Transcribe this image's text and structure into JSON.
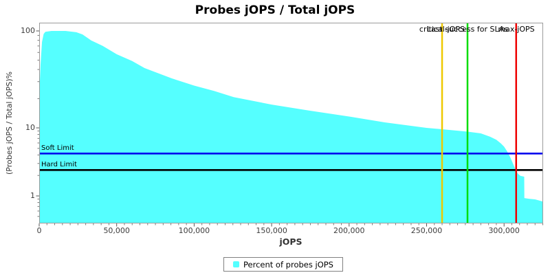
{
  "title": "Probes jOPS / Total jOPS",
  "x_axis": {
    "label": "jOPS",
    "max": 325200,
    "minor_tick_step": 5000,
    "ticks": [
      {
        "value": 0,
        "label": "0"
      },
      {
        "value": 50000,
        "label": "50,000"
      },
      {
        "value": 100000,
        "label": "100,000"
      },
      {
        "value": 150000,
        "label": "150,000"
      },
      {
        "value": 200000,
        "label": "200,000"
      },
      {
        "value": 250000,
        "label": "250,000"
      },
      {
        "value": 300000,
        "label": "300,000"
      }
    ]
  },
  "y_axis": {
    "label": "(Probes jOPS / Total jOPS)%",
    "scale": "log",
    "ticks": [
      {
        "value": 1,
        "label": "1"
      },
      {
        "value": 10,
        "label": "10"
      },
      {
        "value": 100,
        "label": "100"
      }
    ]
  },
  "legend": {
    "label": "Percent of probes jOPS",
    "swatch_color": "#55ffff"
  },
  "chart_data": {
    "type": "area",
    "title": "Probes jOPS / Total jOPS",
    "xlabel": "jOPS",
    "ylabel": "(Probes jOPS / Total jOPS)%",
    "x_range": [
      0,
      325200
    ],
    "y_scale": "log",
    "y_range_pct": [
      0.4,
      120
    ],
    "grid": false,
    "legend_position": "bottom",
    "series": [
      {
        "name": "Percent of probes jOPS",
        "color": "#55ffff",
        "points": [
          [
            0,
            0.39
          ],
          [
            400,
            29
          ],
          [
            900,
            45
          ],
          [
            1800,
            77
          ],
          [
            2900,
            93
          ],
          [
            4000,
            98
          ],
          [
            8000,
            100
          ],
          [
            17000,
            100
          ],
          [
            24000,
            97
          ],
          [
            28000,
            92
          ],
          [
            33500,
            80
          ],
          [
            41000,
            70
          ],
          [
            50000,
            57.5
          ],
          [
            60000,
            49
          ],
          [
            68000,
            41.4
          ],
          [
            85600,
            32.4
          ],
          [
            100000,
            27.3
          ],
          [
            113000,
            24
          ],
          [
            125500,
            20.8
          ],
          [
            150000,
            17.4
          ],
          [
            174000,
            15.1
          ],
          [
            200000,
            13.1
          ],
          [
            223000,
            11.4
          ],
          [
            250000,
            10
          ],
          [
            260000,
            9.55
          ],
          [
            270000,
            9.1
          ],
          [
            276500,
            8.8
          ],
          [
            285000,
            8.3
          ],
          [
            291000,
            7.4
          ],
          [
            295000,
            6.7
          ],
          [
            298000,
            5.9
          ],
          [
            300000,
            5.3
          ],
          [
            302000,
            4.5
          ],
          [
            304000,
            3.7
          ],
          [
            306000,
            2.9
          ],
          [
            307500,
            2.42
          ],
          [
            309000,
            2.12
          ],
          [
            310500,
            1.97
          ],
          [
            313000,
            1.92
          ],
          [
            313100,
            0.93
          ],
          [
            316000,
            0.91
          ],
          [
            320000,
            0.89
          ],
          [
            324000,
            0.84
          ],
          [
            325200,
            0.82
          ]
        ]
      }
    ],
    "vertical_markers": [
      {
        "label": "critical-jOPS",
        "x": 260000,
        "color": "#eec800"
      },
      {
        "label": "Last success for SLAs",
        "x": 276400,
        "color": "#00dd00"
      },
      {
        "label": "max-jOPS",
        "x": 307800,
        "color": "#ee0000"
      }
    ],
    "horizontal_markers": [
      {
        "label": "Soft Limit",
        "y_pct": 4.2,
        "color": "#0000ee"
      },
      {
        "label": "Hard Limit",
        "y_pct": 2.4,
        "color": "#000000"
      }
    ]
  }
}
